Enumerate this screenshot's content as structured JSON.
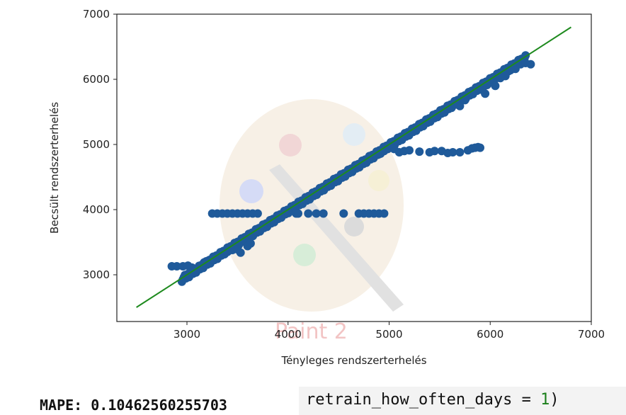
{
  "chart_data": {
    "type": "scatter",
    "xlabel": "Tényleges rendszerterhelés",
    "ylabel": "Becsült rendszerterhelés",
    "xlim": [
      2300,
      7000
    ],
    "ylim": [
      2300,
      7000
    ],
    "xticks": [
      3000,
      4000,
      5000,
      6000,
      7000
    ],
    "yticks": [
      3000,
      4000,
      5000,
      6000,
      7000
    ],
    "grid": false,
    "point_color": "#1f5a9a",
    "line_color": "#1e8a1e",
    "reference_line": {
      "x": [
        2500,
        6800
      ],
      "y": [
        2500,
        6800
      ]
    },
    "scatter_main_band": {
      "x_from": 2950,
      "x_to": 6350,
      "y_offset": 0,
      "count": 340
    },
    "scatter_low_tail": [
      [
        2850,
        3130
      ],
      [
        2900,
        3130
      ],
      [
        2960,
        3130
      ],
      [
        3010,
        3140
      ],
      [
        3050,
        3110
      ],
      [
        3080,
        3060
      ],
      [
        3110,
        3080
      ],
      [
        3140,
        3130
      ],
      [
        3170,
        3190
      ],
      [
        3200,
        3210
      ],
      [
        3230,
        3230
      ],
      [
        3260,
        3240
      ],
      [
        3300,
        3270
      ],
      [
        3350,
        3310
      ],
      [
        3400,
        3350
      ],
      [
        3450,
        3380
      ],
      [
        3500,
        3390
      ],
      [
        3530,
        3340
      ],
      [
        3600,
        3440
      ],
      [
        3630,
        3480
      ]
    ],
    "scatter_flat_3940": [
      [
        3250,
        3940
      ],
      [
        3300,
        3940
      ],
      [
        3350,
        3940
      ],
      [
        3400,
        3940
      ],
      [
        3450,
        3940
      ],
      [
        3500,
        3940
      ],
      [
        3550,
        3940
      ],
      [
        3600,
        3940
      ],
      [
        3650,
        3940
      ],
      [
        3700,
        3940
      ],
      [
        4080,
        3940
      ],
      [
        4100,
        3940
      ],
      [
        4200,
        3940
      ],
      [
        4280,
        3940
      ],
      [
        4350,
        3940
      ],
      [
        4550,
        3940
      ],
      [
        4700,
        3940
      ],
      [
        4750,
        3940
      ],
      [
        4800,
        3940
      ],
      [
        4850,
        3940
      ],
      [
        4900,
        3940
      ],
      [
        4950,
        3940
      ]
    ],
    "scatter_flat_4900": [
      [
        5050,
        4930
      ],
      [
        5100,
        4880
      ],
      [
        5150,
        4900
      ],
      [
        5200,
        4910
      ],
      [
        5300,
        4890
      ],
      [
        5400,
        4880
      ],
      [
        5450,
        4900
      ],
      [
        5520,
        4900
      ],
      [
        5580,
        4870
      ],
      [
        5630,
        4880
      ],
      [
        5700,
        4880
      ],
      [
        5780,
        4910
      ],
      [
        5820,
        4940
      ],
      [
        5850,
        4950
      ],
      [
        5880,
        4960
      ],
      [
        5900,
        4950
      ]
    ],
    "scatter_upper_spread": [
      [
        5000,
        4980
      ],
      [
        4950,
        4900
      ],
      [
        4900,
        4850
      ],
      [
        4800,
        4800
      ],
      [
        4700,
        4700
      ],
      [
        6100,
        6020
      ],
      [
        6200,
        6140
      ],
      [
        6250,
        6160
      ],
      [
        6300,
        6230
      ],
      [
        6350,
        6250
      ],
      [
        6400,
        6230
      ],
      [
        5950,
        5780
      ],
      [
        6050,
        5900
      ],
      [
        6150,
        6050
      ],
      [
        5700,
        5590
      ],
      [
        5750,
        5680
      ]
    ]
  },
  "output": {
    "mape_text": "MAPE: 0.10462560255703",
    "code_text": "retrain_how_often_days = ",
    "code_number": "1",
    "code_paren": ")"
  },
  "watermark": {
    "text": "Paint 2"
  }
}
